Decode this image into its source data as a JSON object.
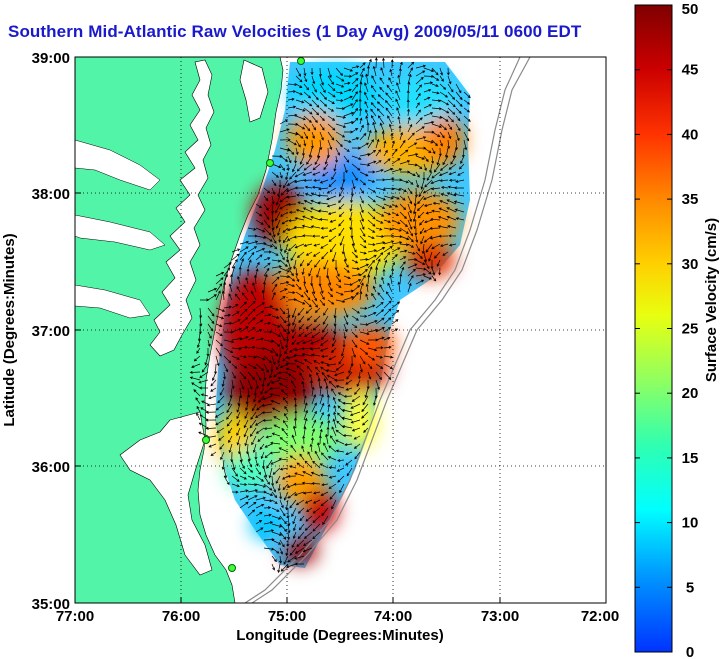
{
  "title": "Southern Mid-Atlantic Raw Velocities (1 Day Avg) 2009/05/11 0600 EDT",
  "xlabel": "Longitude (Degrees:Minutes)",
  "ylabel": "Latitude (Degrees:Minutes)",
  "x_ticks": [
    "77:00",
    "76:00",
    "75:00",
    "74:00",
    "73:00",
    "72:00"
  ],
  "y_ticks": [
    "39:00",
    "38:00",
    "37:00",
    "36:00",
    "35:00"
  ],
  "colorbar": {
    "label": "Surface Velocity (cm/s)",
    "ticks": [
      "0",
      "5",
      "10",
      "15",
      "20",
      "25",
      "30",
      "35",
      "40",
      "45",
      "50"
    ],
    "range": [
      0,
      50
    ],
    "colors": [
      "#0000ff",
      "#00aaff",
      "#00ffff",
      "#40ffb0",
      "#b0ff40",
      "#ffff00",
      "#ffaa00",
      "#ff5500",
      "#e00000",
      "#800000"
    ]
  },
  "map": {
    "extent": {
      "lon": [
        -77,
        -72
      ],
      "lat": [
        35,
        39
      ]
    },
    "land_color": "#52f5a8",
    "grid": true,
    "grid_style": "dotted"
  }
}
